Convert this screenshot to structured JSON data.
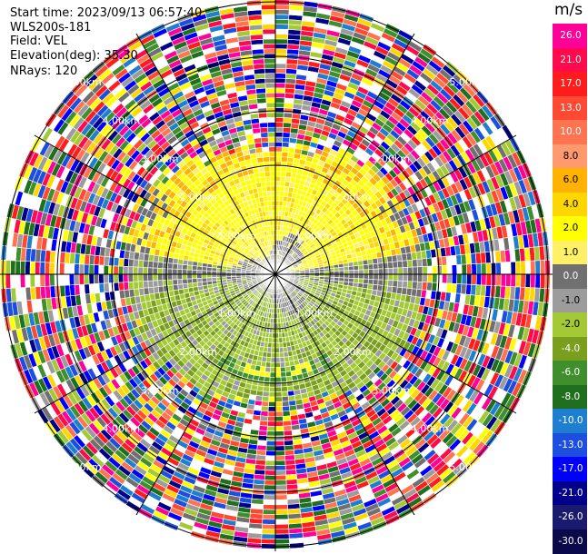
{
  "header": {
    "start_time": "Start time: 2023/09/13 06:57:40",
    "instrument": "WLS200s-181",
    "field": "Field: VEL",
    "elevation": "Elevation(deg): 35.30",
    "nrays": "NRays: 120"
  },
  "colorbar": {
    "unit": "m/s",
    "labels": [
      "26.0",
      "21.0",
      "17.0",
      "13.0",
      "10.0",
      "8.0",
      "6.0",
      "4.0",
      "2.0",
      "1.0",
      "0.0",
      "-1.0",
      "-2.0",
      "-4.0",
      "-6.0",
      "-8.0",
      "-10.0",
      "-13.0",
      "-17.0",
      "-21.0",
      "-26.0",
      "-30.0"
    ],
    "colors": [
      "#ff0099",
      "#ff0a4c",
      "#ff1c1c",
      "#ff4a33",
      "#ff7450",
      "#ff9a6e",
      "#ffb300",
      "#ffd700",
      "#ffff00",
      "#fff066",
      "#707070",
      "#9c9c9c",
      "#a3c935",
      "#7a9e1d",
      "#3f8f2c",
      "#1f6f1f",
      "#1e7fd0",
      "#1c4fe0",
      "#0000ff",
      "#00008a",
      "#1a1a6e",
      "#0a0a4a"
    ]
  },
  "chart_data": {
    "type": "ppi_polar",
    "field": "VEL",
    "unit": "m/s",
    "elevation_deg": 35.3,
    "nrays": 120,
    "range_ring_labels": [
      "1.00km",
      "2.00km",
      "3.00km",
      "4.00km",
      "5.00km"
    ],
    "range_rings_km": [
      1.0,
      2.0,
      3.0,
      4.0,
      5.0
    ],
    "max_range_km": 5.0,
    "regions_by_range_and_azimuth": [
      {
        "range_km": [
          0.0,
          0.6
        ],
        "azimuth": "all",
        "velocity_ms": [
          -1.0,
          0.0
        ],
        "description": "gray noise core"
      },
      {
        "range_km": [
          0.6,
          2.2
        ],
        "azimuth": "north",
        "velocity_ms": [
          2.0,
          4.0
        ]
      },
      {
        "range_km": [
          0.6,
          2.2
        ],
        "azimuth": "south",
        "velocity_ms": [
          -2.0,
          -4.0
        ]
      },
      {
        "range_km": [
          1.8,
          2.0
        ],
        "azimuth": "south",
        "velocity_ms": [
          -6.0,
          -6.0
        ]
      },
      {
        "range_km": [
          2.6,
          5.0
        ],
        "azimuth": "all",
        "velocity_ms": [
          -30.0,
          26.0
        ],
        "description": "noisy outer range"
      }
    ]
  }
}
